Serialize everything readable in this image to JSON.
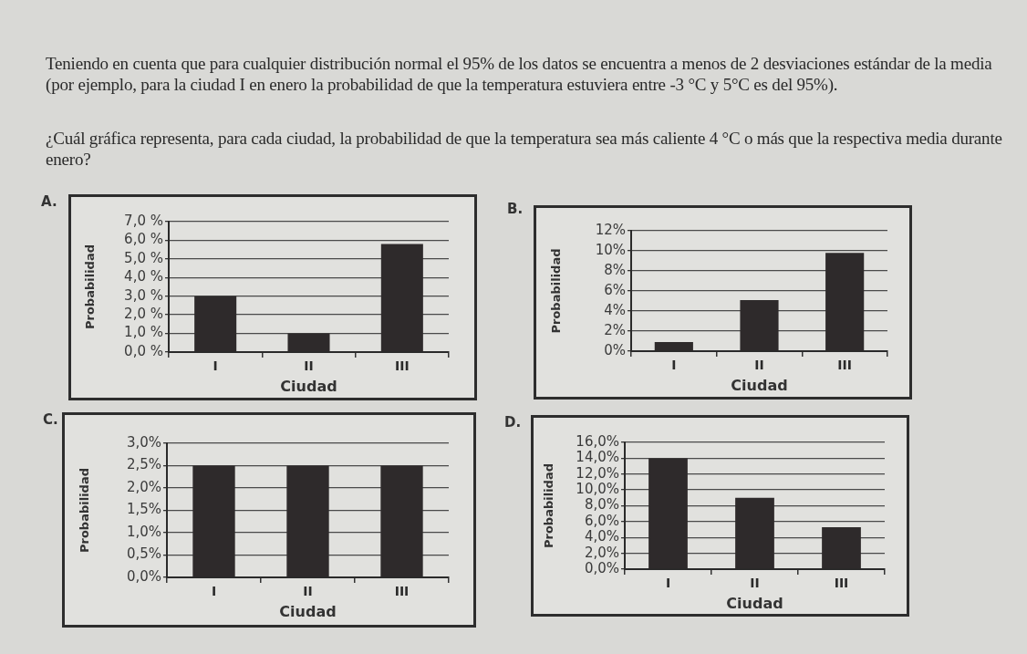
{
  "chart_data": [
    {
      "type": "other",
      "annotations": [
        "Teniendo en cuenta que para cualquier distribución normal el 95% de los datos se encuentra a menos de 2 desviaciones estándar de la media (por ejemplo, para la ciudad I en enero la probabilidad de que la temperatura estuviera entre -3 °C y 5°C es del 95%).",
        "¿Cuál gráfica representa, para cada ciudad, la probabilidad de que la temperatura sea más caliente 4 °C  o más que la respectiva media durante enero?"
      ]
    },
    {
      "type": "bar",
      "title": "A.",
      "xlabel": "Ciudad",
      "ylabel": "Probabilidad",
      "categories": [
        "I",
        "II",
        "III"
      ],
      "values": [
        3.0,
        1.0,
        5.8
      ],
      "color": "#2e2a2b",
      "ylim": [
        0,
        7
      ],
      "yticks": [
        {
          "value": 0,
          "label": "0,0 %"
        },
        {
          "value": 1,
          "label": "1,0 %"
        },
        {
          "value": 2,
          "label": "2,0 %"
        },
        {
          "value": 3,
          "label": "3,0 %"
        },
        {
          "value": 4,
          "label": "4,0 %"
        },
        {
          "value": 5,
          "label": "5,0 %"
        },
        {
          "value": 6,
          "label": "6,0 %"
        },
        {
          "value": 7,
          "label": "7,0 %"
        }
      ],
      "grid": "y"
    },
    {
      "type": "bar",
      "title": "B.",
      "xlabel": "Ciudad",
      "ylabel": "Probabilidad",
      "categories": [
        "I",
        "II",
        "III"
      ],
      "values": [
        0.9,
        5.1,
        9.8
      ],
      "color": "#2e2a2b",
      "ylim": [
        0,
        12
      ],
      "yticks": [
        {
          "value": 0,
          "label": "0%"
        },
        {
          "value": 2,
          "label": "2%"
        },
        {
          "value": 4,
          "label": "4%"
        },
        {
          "value": 6,
          "label": "6%"
        },
        {
          "value": 8,
          "label": "8%"
        },
        {
          "value": 10,
          "label": "10%"
        },
        {
          "value": 12,
          "label": "12%"
        }
      ],
      "grid": "y"
    },
    {
      "type": "bar",
      "title": "C.",
      "xlabel": "Ciudad",
      "ylabel": "Probabilidad",
      "categories": [
        "I",
        "II",
        "III"
      ],
      "values": [
        2.5,
        2.5,
        2.5
      ],
      "color": "#2e2a2b",
      "ylim": [
        0,
        3
      ],
      "yticks": [
        {
          "value": 0,
          "label": "0,0%"
        },
        {
          "value": 0.5,
          "label": "0,5%"
        },
        {
          "value": 1,
          "label": "1,0%"
        },
        {
          "value": 1.5,
          "label": "1,5%"
        },
        {
          "value": 2,
          "label": "2,0%"
        },
        {
          "value": 2.5,
          "label": "2,5%"
        },
        {
          "value": 3,
          "label": "3,0%"
        }
      ],
      "grid": "y"
    },
    {
      "type": "bar",
      "title": "D.",
      "xlabel": "Ciudad",
      "ylabel": "Probabilidad",
      "categories": [
        "I",
        "II",
        "III"
      ],
      "values": [
        14.0,
        9.0,
        5.3
      ],
      "color": "#2e2a2b",
      "ylim": [
        0,
        16
      ],
      "yticks": [
        {
          "value": 0,
          "label": "0,0%"
        },
        {
          "value": 2,
          "label": "2,0%"
        },
        {
          "value": 4,
          "label": "4,0%"
        },
        {
          "value": 6,
          "label": "6,0%"
        },
        {
          "value": 8,
          "label": "8,0%"
        },
        {
          "value": 10,
          "label": "10,0%"
        },
        {
          "value": 12,
          "label": "12,0%"
        },
        {
          "value": 14,
          "label": "14,0%"
        },
        {
          "value": 16,
          "label": "16,0%"
        }
      ],
      "grid": "y"
    }
  ]
}
